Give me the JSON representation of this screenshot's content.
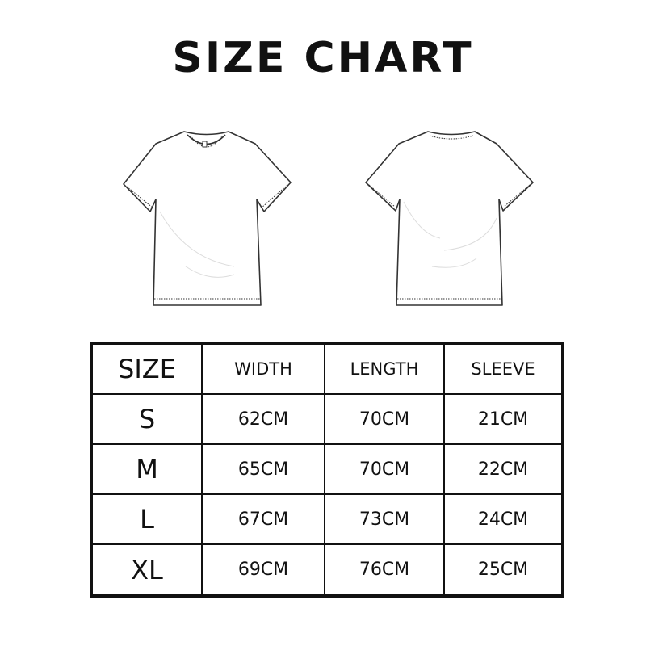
{
  "title": "SIZE CHART",
  "illustrations": {
    "front": "t-shirt-front",
    "back": "t-shirt-back"
  },
  "table": {
    "headers": [
      "SIZE",
      "WIDTH",
      "LENGTH",
      "SLEEVE"
    ],
    "rows": [
      [
        "S",
        "62CM",
        "70CM",
        "21CM"
      ],
      [
        "M",
        "65CM",
        "70CM",
        "22CM"
      ],
      [
        "L",
        "67CM",
        "73CM",
        "24CM"
      ],
      [
        "XL",
        "69CM",
        "76CM",
        "25CM"
      ]
    ]
  }
}
